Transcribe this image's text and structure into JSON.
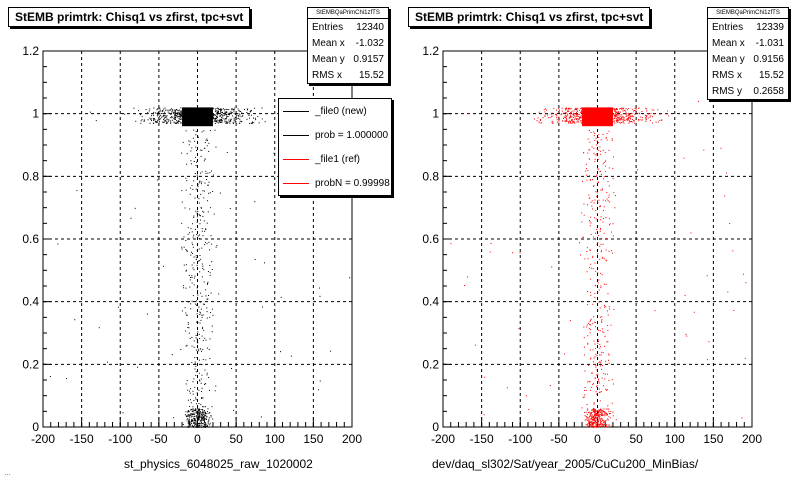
{
  "footer": "…",
  "chart_data": [
    {
      "type": "scatter",
      "title": "StEMB primtrk: Chisq1 vs zfirst, tpc+svt",
      "xlabel": "st_physics_6048025_raw_1020002",
      "ylabel": "",
      "xlim": [
        -200,
        200
      ],
      "ylim": [
        0,
        1.2
      ],
      "xticks": [
        "-200",
        "-150",
        "-100",
        "-50",
        "0",
        "50",
        "100",
        "150",
        "200"
      ],
      "yticks": [
        "0",
        "0.2",
        "0.4",
        "0.6",
        "0.8",
        "1",
        "1.2"
      ],
      "grid": true,
      "marker_color": "#000000",
      "stats": {
        "name": "StEMBQaPrimChi1zfTS",
        "rows": [
          {
            "label": "Entries",
            "value": "12340"
          },
          {
            "label": "Mean x",
            "value": "-1.032"
          },
          {
            "label": "Mean y",
            "value": "0.9157"
          },
          {
            "label": "RMS x",
            "value": "15.52"
          }
        ]
      },
      "legend": {
        "placement": "top-right",
        "entries": [
          {
            "label": "_file0 (new)",
            "color": "#000000"
          },
          {
            "label": "prob = 1.000000",
            "color": "#000000"
          },
          {
            "label": "_file1 (ref)",
            "color": "#ff0000"
          },
          {
            "label": "probN = 0.99998",
            "color": "#ff0000"
          }
        ]
      },
      "series": [
        {
          "dense_core": {
            "x": [
              -20,
              20
            ],
            "y": [
              0.96,
              1.02
            ]
          },
          "band_y1": {
            "x": [
              -100,
              100
            ],
            "y": [
              0.97,
              1.02
            ]
          },
          "column": {
            "x": [
              -25,
              25
            ],
            "y": [
              0.0,
              0.95
            ]
          },
          "bottom_cluster": {
            "x": [
              -18,
              18
            ],
            "y": [
              0.0,
              0.06
            ]
          },
          "sparse": {
            "x": [
              -200,
              200
            ],
            "y": [
              0.0,
              1.05
            ]
          }
        }
      ]
    },
    {
      "type": "scatter",
      "title": "StEMB primtrk: Chisq1 vs zfirst, tpc+svt",
      "xlabel": "dev/daq_sl302/Sat/year_2005/CuCu200_MinBias/",
      "ylabel": "",
      "xlim": [
        -200,
        200
      ],
      "ylim": [
        0,
        1.2
      ],
      "xticks": [
        "-200",
        "-150",
        "-100",
        "-50",
        "0",
        "50",
        "100",
        "150",
        "200"
      ],
      "yticks": [
        "0",
        "0.2",
        "0.4",
        "0.6",
        "0.8",
        "1",
        "1.2"
      ],
      "grid": true,
      "marker_color": "#ff0000",
      "stats": {
        "name": "StEMBQaPrimChi1zfTS",
        "rows": [
          {
            "label": "Entries",
            "value": "12339"
          },
          {
            "label": "Mean x",
            "value": "-1.031"
          },
          {
            "label": "Mean y",
            "value": "0.9156"
          },
          {
            "label": "RMS x",
            "value": "15.52"
          },
          {
            "label": "RMS y",
            "value": "0.2658"
          }
        ]
      },
      "series": [
        {
          "dense_core": {
            "x": [
              -20,
              20
            ],
            "y": [
              0.96,
              1.02
            ]
          },
          "band_y1": {
            "x": [
              -100,
              100
            ],
            "y": [
              0.97,
              1.02
            ]
          },
          "column": {
            "x": [
              -25,
              25
            ],
            "y": [
              0.0,
              0.95
            ]
          },
          "bottom_cluster": {
            "x": [
              -18,
              18
            ],
            "y": [
              0.0,
              0.06
            ]
          },
          "sparse": {
            "x": [
              -200,
              200
            ],
            "y": [
              0.0,
              1.05
            ]
          }
        }
      ]
    }
  ]
}
